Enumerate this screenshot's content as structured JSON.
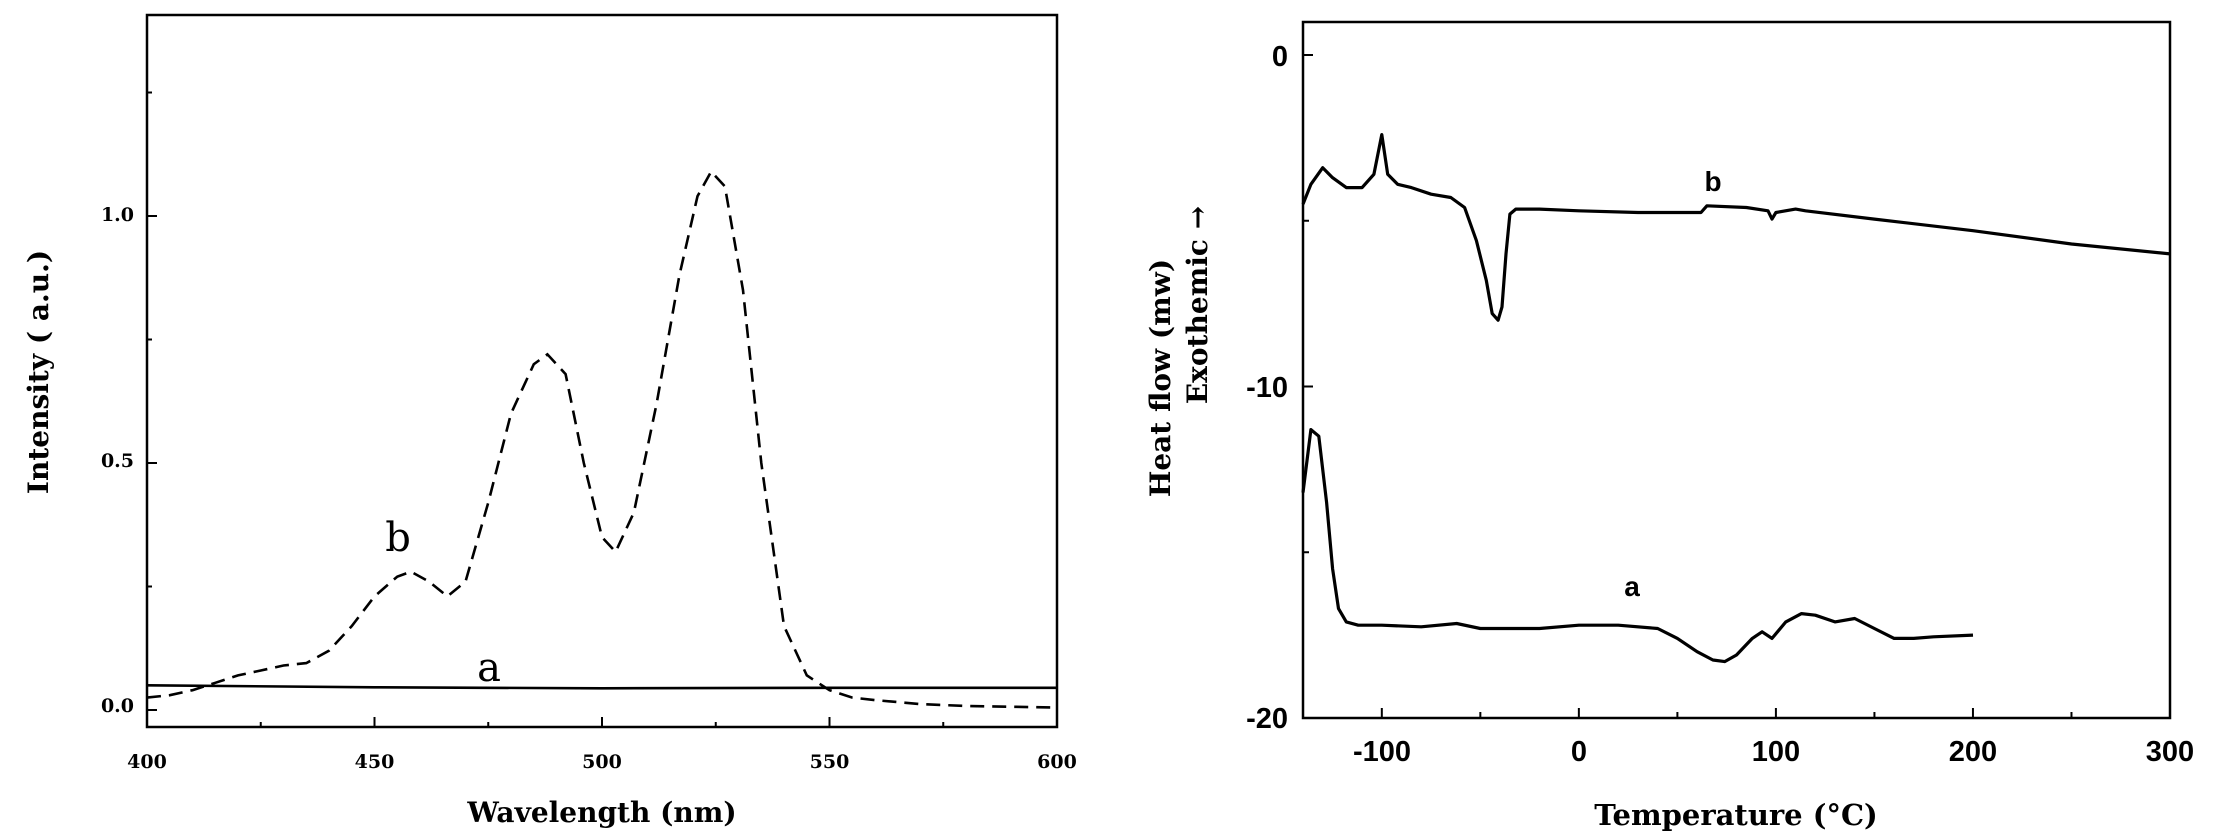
{
  "chart_data": [
    {
      "type": "line",
      "xlabel": "Wavelength (nm)",
      "ylabel": "Intensity ( a.u.)",
      "xlim": [
        400,
        600
      ],
      "ylim": [
        -0.05,
        1.4
      ],
      "xticks": [
        "400",
        "450",
        "500",
        "550",
        "600"
      ],
      "yticks": [
        "0.0",
        "0.5",
        "1.0"
      ],
      "series": [
        {
          "name": "a",
          "style": "solid",
          "x": [
            400,
            450,
            500,
            550,
            600
          ],
          "y": [
            0.05,
            0.046,
            0.044,
            0.045,
            0.045
          ]
        },
        {
          "name": "b",
          "style": "dashed",
          "x": [
            400,
            405,
            410,
            415,
            420,
            425,
            430,
            435,
            440,
            445,
            450,
            455,
            458,
            462,
            466,
            470,
            475,
            480,
            485,
            488,
            492,
            496,
            500,
            503,
            507,
            512,
            517,
            521,
            524,
            527,
            531,
            535,
            540,
            545,
            550,
            555,
            560,
            570,
            580,
            600
          ],
          "y": [
            0.025,
            0.03,
            0.04,
            0.055,
            0.07,
            0.08,
            0.09,
            0.095,
            0.12,
            0.17,
            0.23,
            0.27,
            0.28,
            0.26,
            0.23,
            0.26,
            0.42,
            0.6,
            0.7,
            0.72,
            0.68,
            0.5,
            0.35,
            0.32,
            0.4,
            0.62,
            0.88,
            1.04,
            1.09,
            1.06,
            0.85,
            0.5,
            0.17,
            0.07,
            0.04,
            0.025,
            0.02,
            0.012,
            0.008,
            0.005
          ]
        }
      ]
    },
    {
      "type": "line",
      "xlabel": "Temperature (°C)",
      "ylabel": "Heat flow (mw)",
      "ylabel2": "Exothemic →",
      "xlim": [
        -140,
        300
      ],
      "ylim": [
        -20,
        1
      ],
      "xticks": [
        "-100",
        "0",
        "100",
        "200",
        "300"
      ],
      "yticks": [
        "0",
        "-10",
        "-20"
      ],
      "series": [
        {
          "name": "b",
          "x": [
            -140,
            -136,
            -130,
            -125,
            -118,
            -110,
            -104,
            -100,
            -97,
            -92,
            -85,
            -75,
            -65,
            -58,
            -52,
            -47,
            -44,
            -41,
            -39,
            -37,
            -35,
            -32,
            -20,
            0,
            30,
            62,
            65,
            85,
            96,
            98,
            100,
            110,
            115,
            150,
            200,
            250,
            300
          ],
          "y": [
            -4.5,
            -3.9,
            -3.4,
            -3.7,
            -4.0,
            -4.0,
            -3.6,
            -2.4,
            -3.6,
            -3.9,
            -4.0,
            -4.2,
            -4.3,
            -4.6,
            -5.6,
            -6.8,
            -7.8,
            -8.0,
            -7.6,
            -6.0,
            -4.8,
            -4.65,
            -4.65,
            -4.7,
            -4.75,
            -4.75,
            -4.55,
            -4.6,
            -4.7,
            -4.95,
            -4.75,
            -4.65,
            -4.7,
            -4.95,
            -5.3,
            -5.7,
            -6.0
          ]
        },
        {
          "name": "a",
          "x": [
            -140,
            -136,
            -132,
            -128,
            -125,
            -122,
            -118,
            -112,
            -100,
            -80,
            -62,
            -50,
            -20,
            0,
            20,
            40,
            50,
            60,
            68,
            74,
            80,
            88,
            93,
            98,
            105,
            113,
            120,
            130,
            140,
            150,
            160,
            170,
            180,
            200
          ],
          "y": [
            -13.2,
            -11.3,
            -11.5,
            -13.5,
            -15.5,
            -16.7,
            -17.1,
            -17.2,
            -17.2,
            -17.25,
            -17.15,
            -17.3,
            -17.3,
            -17.2,
            -17.2,
            -17.3,
            -17.6,
            -18.0,
            -18.25,
            -18.3,
            -18.1,
            -17.6,
            -17.4,
            -17.6,
            -17.1,
            -16.85,
            -16.9,
            -17.1,
            -17.0,
            -17.3,
            -17.6,
            -17.6,
            -17.55,
            -17.5
          ]
        }
      ]
    }
  ]
}
